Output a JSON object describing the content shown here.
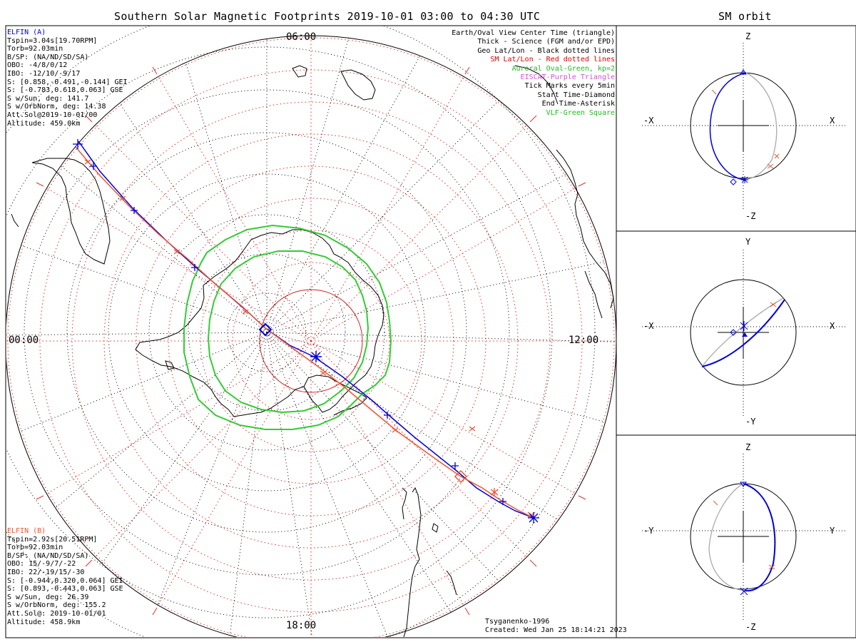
{
  "main": {
    "title": "Southern Solar Magnetic Footprints 2019-10-01 03:00 to 04:30 UTC",
    "mlt_labels": {
      "top": "06:00",
      "left": "00:00",
      "right": "12:00",
      "bottom": "18:00"
    },
    "credit": [
      "Tsyganenko-1996",
      "Created: Wed Jan 25 18:14:21 2023"
    ]
  },
  "ela": {
    "name": "ELFIN (A)",
    "color": "#0000dd",
    "lines": [
      "Tspin=3.04s[19.70RPM]",
      "Torb=92.03min",
      "B/SP: (NA/ND/SD/SA)",
      "OBO: -4/8/0/12",
      "IBO: -12/10/-9/17",
      "S: [0.858,-0.491,-0.144] GEI",
      "S: [-0.783,0.618,0.063] GSE",
      "S w/Sun, deg: 141.7",
      "S w/OrbNorm, deg: 14.38",
      "Att.Sol@2019-10-01/00",
      "Altitude: 459.0km"
    ]
  },
  "elb": {
    "name": "ELFIN (B)",
    "color": "#ee5533",
    "lines": [
      "Tspin=2.92s[20.51RPM]",
      "Torb=92.03min",
      "B/SP: (NA/ND/SD/SA)",
      "OBO: 15/-9/7/-22",
      "IBO: 22/-19/15/-30",
      "S: [-0.944,0.320,0.064] GEI",
      "S: [0.893,-0.443,0.063] GSE",
      "S w/Sun, deg: 26.39",
      "S w/OrbNorm, deg: 155.2",
      "Att.Sol@: 2019-10-01/01",
      "Altitude: 458.9km"
    ]
  },
  "legend": [
    {
      "text": "Earth/Oval View Center Time (triangle)",
      "color": "#000000"
    },
    {
      "text": "Thick - Science (FGM and/or EPD)",
      "color": "#000000"
    },
    {
      "text": "Geo Lat/Lon - Black dotted lines",
      "color": "#000000"
    },
    {
      "text": "SM Lat/Lon - Red dotted lines",
      "color": "#dd0000"
    },
    {
      "text": "Auroral Oval-Green, kp=2",
      "color": "#22bb22"
    },
    {
      "text": "EISCAT-Purple Triangle",
      "color": "#cc55cc"
    },
    {
      "text": "Tick Marks every 5min",
      "color": "#000000"
    },
    {
      "text": "Start Time-Diamond",
      "color": "#000000"
    },
    {
      "text": "End Time-Asterisk",
      "color": "#000000"
    },
    {
      "text": "VLF-Green Square",
      "color": "#22bb22"
    }
  ],
  "orbit": {
    "title": "SM orbit",
    "panels": [
      {
        "top": "Z",
        "bottom": "-Z",
        "left": "-X",
        "right": "X"
      },
      {
        "top": "Y",
        "bottom": "-Y",
        "left": "-X",
        "right": "X"
      },
      {
        "top": "Z",
        "bottom": "-Z",
        "left": "-Y",
        "right": "Y"
      }
    ]
  }
}
